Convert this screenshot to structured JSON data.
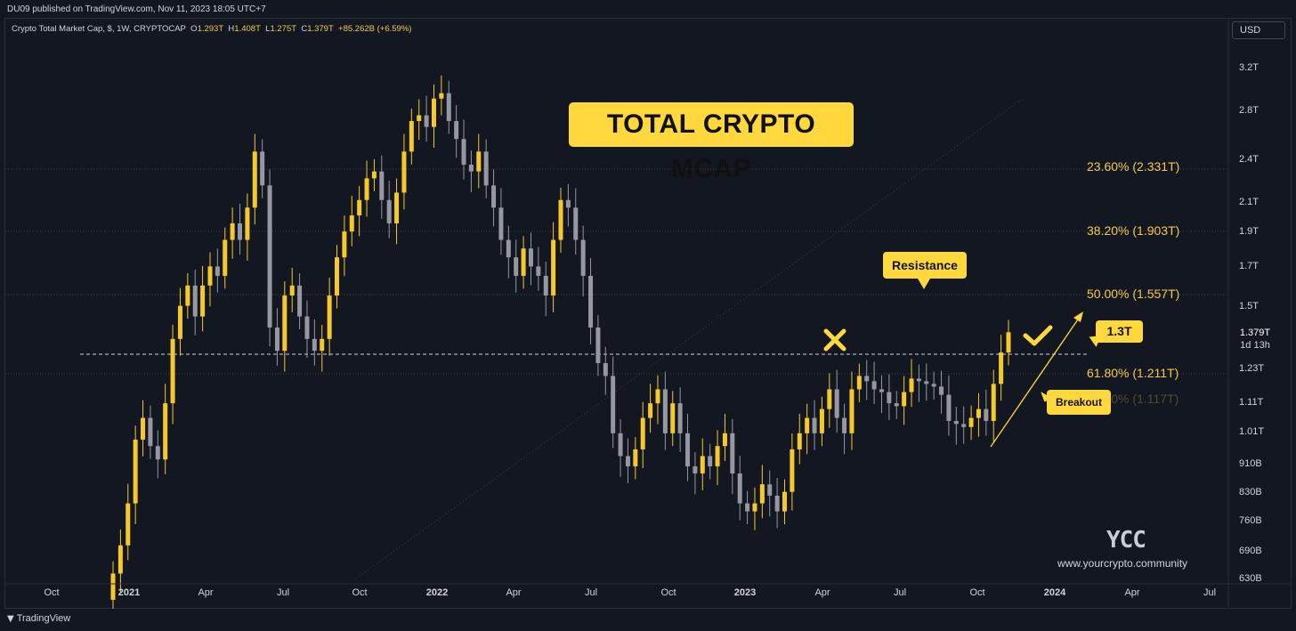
{
  "published_line": "DU09 published on TradingView.com, Nov 11, 2023 18:05 UTC+7",
  "symbol": {
    "name": "Crypto Total Market Cap, $, 1W, CRYPTOCAP",
    "o_label": "O",
    "o": "1.293T",
    "h_label": "H",
    "h": "1.408T",
    "l_label": "L",
    "l": "1.275T",
    "c_label": "C",
    "c": "1.379T",
    "chg": "+85.262B (+6.59%)"
  },
  "currency_button": "USD",
  "footer_logo": "TradingView",
  "title": "TOTAL CRYPTO MCAP",
  "callouts": {
    "resistance": "Resistance",
    "breakout": "Breakout",
    "level": "1.3T"
  },
  "price_tag": {
    "price": "1.379T",
    "countdown": "1d 13h"
  },
  "watermark": {
    "logo": "YCC",
    "site": "www.yourcrypto.community"
  },
  "colors": {
    "bull": "#f7c82c",
    "bear": "#9598a1",
    "accent": "#ffd83d",
    "background": "#131722"
  },
  "chart_data": {
    "type": "candlestick",
    "y_scale": "log",
    "ylim": [
      620,
      3400
    ],
    "y_ticks": [
      "3.2T",
      "2.8T",
      "2.4T",
      "2.1T",
      "1.9T",
      "1.7T",
      "1.5T",
      "1.23T",
      "1.11T",
      "1.01T",
      "910B",
      "830B",
      "760B",
      "690B",
      "630B"
    ],
    "x_ticks": [
      "Oct",
      "2021",
      "Apr",
      "Jul",
      "Oct",
      "2022",
      "Apr",
      "Jul",
      "Oct",
      "2023",
      "Apr",
      "Jul",
      "Oct",
      "2024",
      "Apr",
      "Jul"
    ],
    "fib_levels": [
      {
        "label": "23.60% (2.331T)"
      },
      {
        "label": "38.20% (1.903T)"
      },
      {
        "label": "50.00% (1.557T)"
      },
      {
        "label": "61.80% (1.211T)"
      },
      {
        "label": "78.60% (1.117T)"
      }
    ],
    "resistance_level": "1.3T",
    "candles_close_b": [
      640,
      700,
      800,
      980,
      1050,
      960,
      920,
      1100,
      1350,
      1500,
      1600,
      1450,
      1600,
      1700,
      1650,
      1850,
      1950,
      1850,
      2050,
      2450,
      2200,
      1400,
      1300,
      1550,
      1600,
      1450,
      1350,
      1300,
      1350,
      1550,
      1750,
      1900,
      2000,
      2100,
      2250,
      2300,
      2100,
      1950,
      2150,
      2450,
      2700,
      2750,
      2650,
      2900,
      2950,
      2700,
      2550,
      2350,
      2300,
      2450,
      2200,
      2050,
      1850,
      1750,
      1650,
      1800,
      1700,
      1650,
      1550,
      1850,
      2100,
      2050,
      1850,
      1650,
      1400,
      1250,
      1200,
      1000,
      930,
      900,
      950,
      1050,
      1100,
      1150,
      1000,
      1100,
      1000,
      900,
      880,
      930,
      900,
      960,
      1000,
      880,
      800,
      780,
      800,
      850,
      820,
      780,
      830,
      950,
      1000,
      1050,
      1000,
      1080,
      1150,
      1050,
      1000,
      1150,
      1200,
      1180,
      1150,
      1140,
      1100,
      1090,
      1140,
      1190,
      1180,
      1170,
      1160,
      1130,
      1040,
      1030,
      1020,
      1050,
      1080,
      1040,
      1170,
      1293,
      1379
    ]
  },
  "labels": {}
}
